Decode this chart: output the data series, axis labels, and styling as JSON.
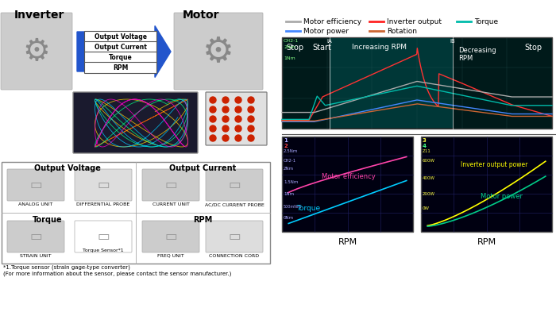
{
  "bg_color": "#ffffff",
  "title_inverter": "Inverter",
  "title_motor": "Motor",
  "arrow_labels": [
    "Output Voltage",
    "Output Current",
    "Torque",
    "RPM"
  ],
  "legend_items": [
    {
      "label": "Motor efficiency",
      "color": "#aaaaaa"
    },
    {
      "label": "Inverter output",
      "color": "#ff2222"
    },
    {
      "label": "Torque",
      "color": "#00bbaa"
    },
    {
      "label": "Motor power",
      "color": "#4488ff"
    },
    {
      "label": "Rotation",
      "color": "#cc6633"
    }
  ],
  "scope2_labels": [
    "Motor efficiency",
    "Torque"
  ],
  "scope3_labels": [
    "Inverter output power",
    "Motor power"
  ],
  "rpm_label": "RPM",
  "footnote1": "*1.Torque sensor (strain gage-type converter)",
  "footnote2": "(For more information about the sensor, please contact the sensor manufacturer.)"
}
